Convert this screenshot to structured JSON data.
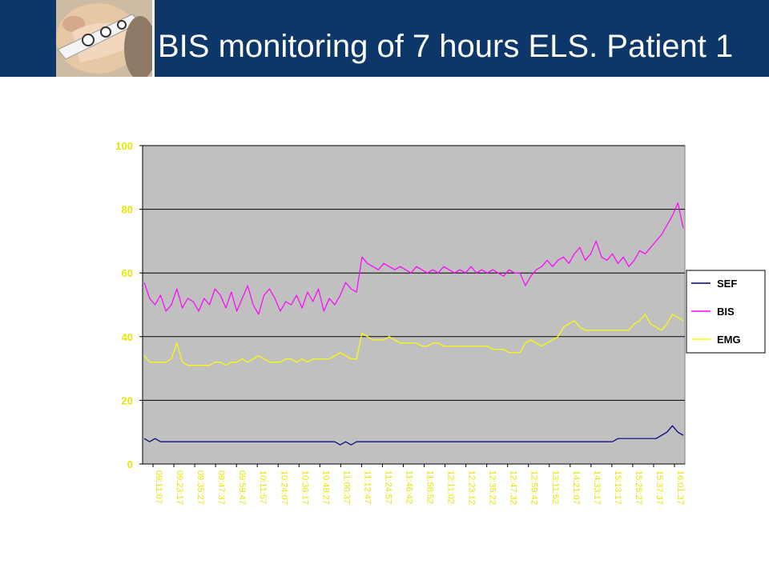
{
  "slide": {
    "title": "BIS monitoring of 7 hours ELS. Patient 1"
  },
  "colors": {
    "header_blue": "#0c3768",
    "plot_bg": "#c0c0c0",
    "tick_label": "#e6e600",
    "grid": "#000000"
  },
  "icons": {
    "header_photo": "patient-face-with-bis-sensor-photo"
  },
  "chart_data": {
    "type": "line",
    "title": "",
    "xlabel": "",
    "ylabel": "",
    "ylim": [
      0,
      100
    ],
    "yticks": [
      0,
      20,
      40,
      60,
      80,
      100
    ],
    "grid": true,
    "legend_position": "right",
    "x_tick_labels": [
      "09:11:07",
      "09:23:17",
      "09:35:27",
      "09:47:37",
      "09:59:47",
      "10:11:57",
      "10:24:07",
      "10:36:17",
      "10:48:27",
      "11:00:37",
      "11:12:47",
      "11:24:57",
      "11:46:42",
      "11:58:52",
      "12:11:02",
      "12:23:12",
      "12:35:22",
      "12:47:32",
      "12:59:42",
      "13:11:52",
      "14:21:07",
      "14:33:17",
      "15:13:17",
      "15:25:27",
      "15:37:37",
      "16:01:37"
    ],
    "series": [
      {
        "name": "SEF",
        "color": "#000080",
        "values": [
          8,
          7,
          8,
          7,
          7,
          7,
          7,
          7,
          7,
          7,
          7,
          7,
          7,
          7,
          7,
          7,
          7,
          7,
          7,
          7,
          7,
          7,
          7,
          7,
          7,
          7,
          7,
          7,
          7,
          7,
          7,
          7,
          7,
          7,
          7,
          7,
          6,
          7,
          6,
          7,
          7,
          7,
          7,
          7,
          7,
          7,
          7,
          7,
          7,
          7,
          7,
          7,
          7,
          7,
          7,
          7,
          7,
          7,
          7,
          7,
          7,
          7,
          7,
          7,
          7,
          7,
          7,
          7,
          7,
          7,
          7,
          7,
          7,
          7,
          7,
          7,
          7,
          7,
          7,
          7,
          7,
          7,
          7,
          7,
          7,
          7,
          7,
          8,
          8,
          8,
          8,
          8,
          8,
          8,
          8,
          9,
          10,
          12,
          10,
          9
        ]
      },
      {
        "name": "BIS",
        "color": "#ff00ff",
        "values": [
          57,
          52,
          50,
          53,
          48,
          50,
          55,
          49,
          52,
          51,
          48,
          52,
          50,
          55,
          53,
          49,
          54,
          48,
          52,
          56,
          50,
          47,
          53,
          55,
          52,
          48,
          51,
          50,
          53,
          49,
          54,
          51,
          55,
          48,
          52,
          50,
          53,
          57,
          55,
          54,
          65,
          63,
          62,
          61,
          63,
          62,
          61,
          62,
          61,
          60,
          62,
          61,
          60,
          61,
          60,
          62,
          61,
          60,
          61,
          60,
          62,
          60,
          61,
          60,
          61,
          60,
          59,
          61,
          60,
          60,
          56,
          59,
          61,
          62,
          64,
          62,
          64,
          65,
          63,
          66,
          68,
          64,
          66,
          70,
          65,
          64,
          66,
          63,
          65,
          62,
          64,
          67,
          66,
          68,
          70,
          72,
          75,
          78,
          82,
          74
        ]
      },
      {
        "name": "EMG",
        "color": "#ffff00",
        "values": [
          34,
          32,
          32,
          32,
          32,
          33,
          38,
          32,
          31,
          31,
          31,
          31,
          31,
          32,
          32,
          31,
          32,
          32,
          33,
          32,
          33,
          34,
          33,
          32,
          32,
          32,
          33,
          33,
          32,
          33,
          32,
          33,
          33,
          33,
          33,
          34,
          35,
          34,
          33,
          33,
          41,
          40,
          39,
          39,
          39,
          40,
          39,
          38,
          38,
          38,
          38,
          37,
          37,
          38,
          38,
          37,
          37,
          37,
          37,
          37,
          37,
          37,
          37,
          37,
          36,
          36,
          36,
          35,
          35,
          35,
          38,
          39,
          38,
          37,
          38,
          39,
          40,
          43,
          44,
          45,
          43,
          42,
          42,
          42,
          42,
          42,
          42,
          42,
          42,
          42,
          44,
          45,
          47,
          44,
          43,
          42,
          44,
          47,
          46,
          45
        ]
      }
    ]
  }
}
